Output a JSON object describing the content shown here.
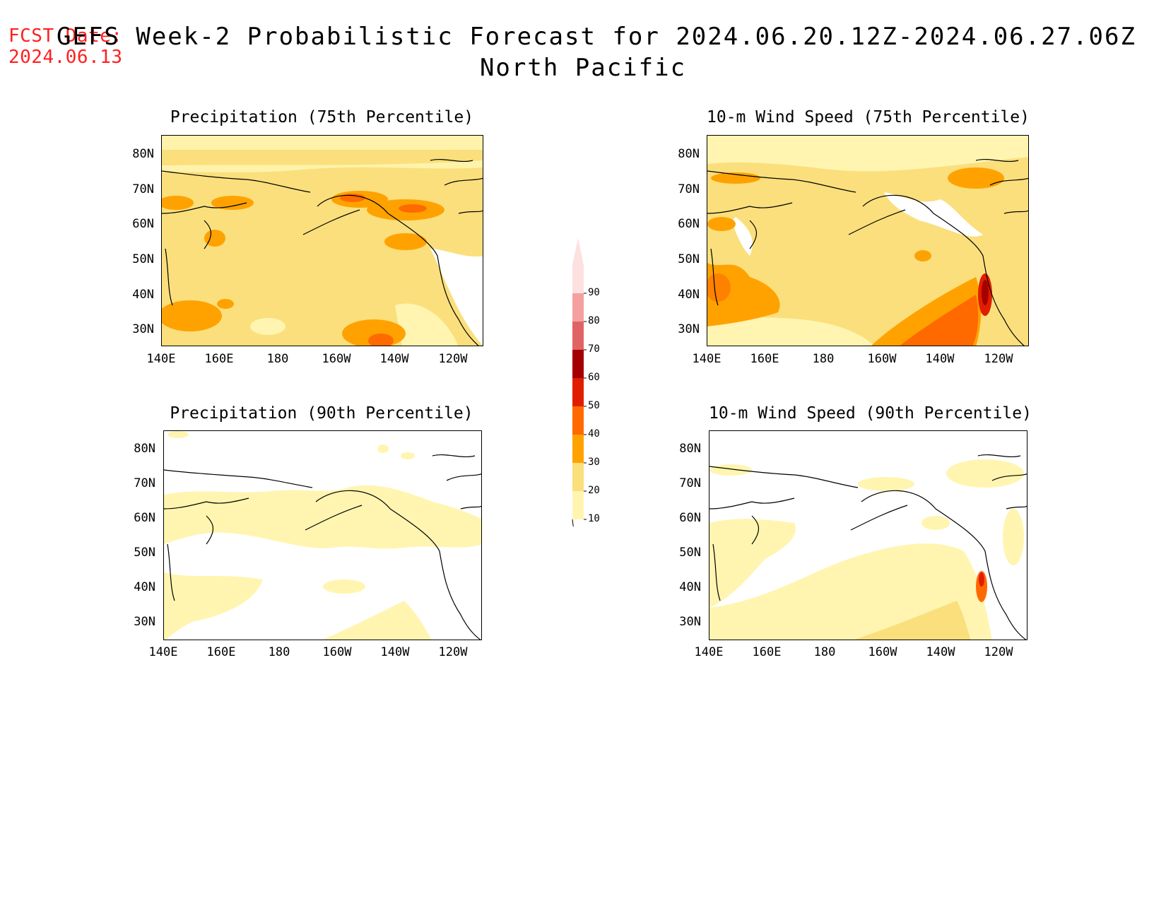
{
  "header": {
    "fcst_label": "FCST Date:",
    "fcst_date": "2024.06.13",
    "title": "GEFS Week-2 Probabilistic Forecast for 2024.06.20.12Z-2024.06.27.06Z",
    "region": "North Pacific"
  },
  "panels": {
    "precip75": {
      "title": "Precipitation (75th Percentile)"
    },
    "wind75": {
      "title": "10-m Wind Speed (75th Percentile)"
    },
    "precip90": {
      "title": "Precipitation (90th Percentile)"
    },
    "wind90": {
      "title": "10-m Wind Speed (90th Percentile)"
    }
  },
  "axes": {
    "lat_labels": [
      "80N",
      "70N",
      "60N",
      "50N",
      "40N",
      "30N"
    ],
    "lon_labels": [
      "140E",
      "160E",
      "180",
      "160W",
      "140W",
      "120W"
    ]
  },
  "colorbar": {
    "levels": [
      "10",
      "20",
      "30",
      "40",
      "50",
      "60",
      "70",
      "80",
      "90"
    ],
    "colors": [
      "#fff5b0",
      "#fadf7c",
      "#ffa200",
      "#ff6a00",
      "#e11d00",
      "#a50000",
      "#e06464",
      "#f5a0a0",
      "#fde0e0"
    ]
  }
}
